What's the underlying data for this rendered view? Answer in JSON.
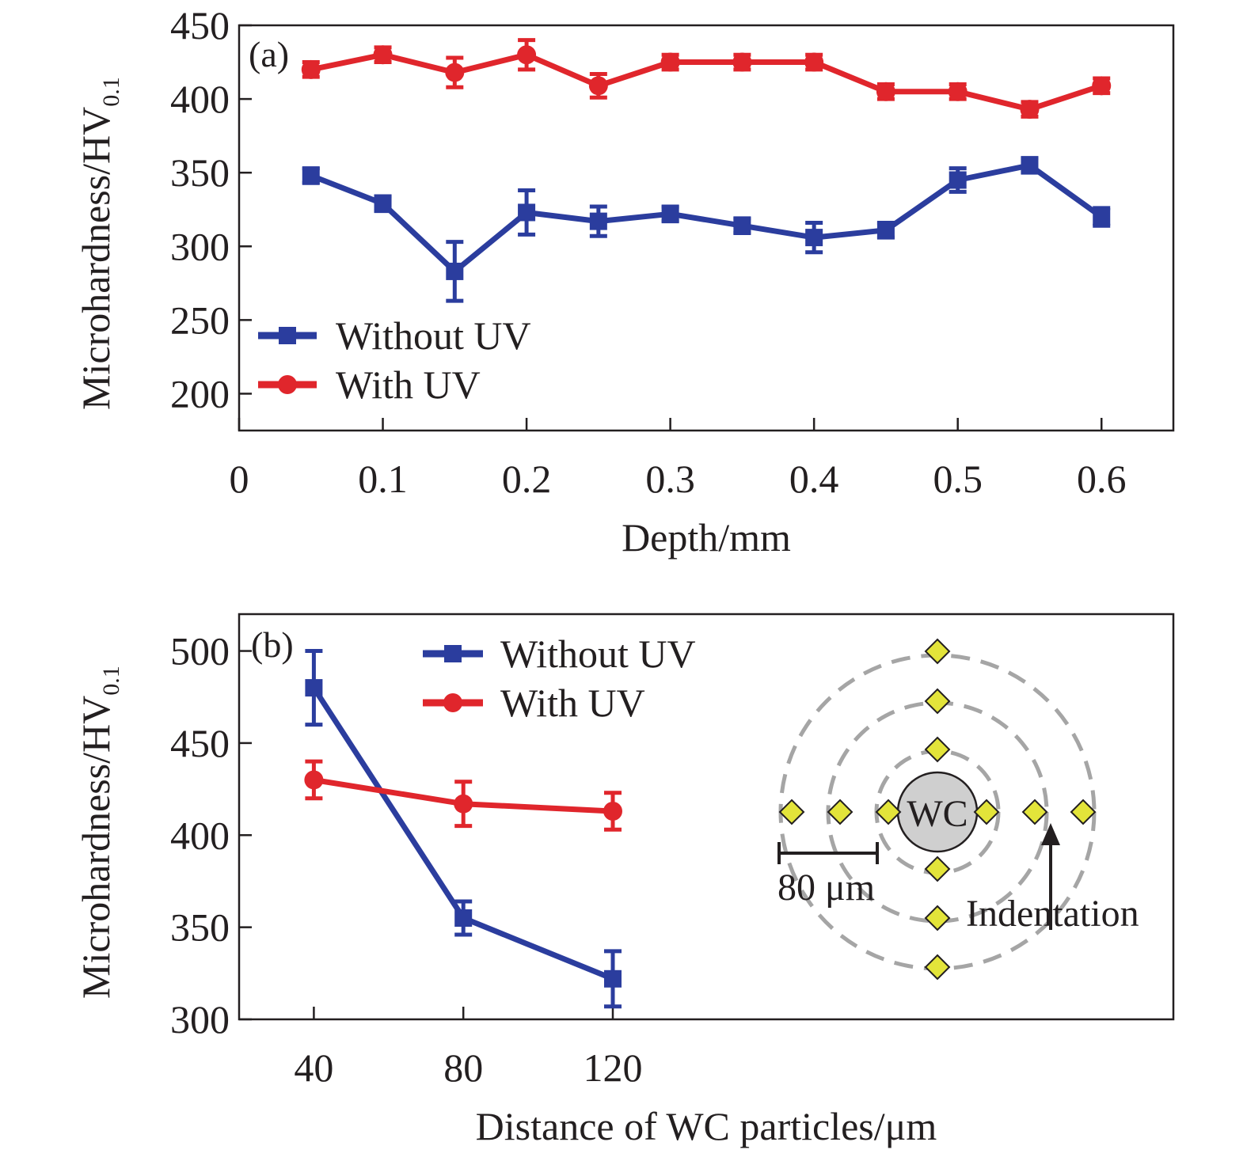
{
  "chart_data": [
    {
      "panel": "(a)",
      "type": "line",
      "xlabel": "Depth/mm",
      "ylabel": "Microhardness/HV",
      "ylabel_sub": "0.1",
      "xlim": [
        0,
        0.65
      ],
      "ylim": [
        175,
        450
      ],
      "xticks": [
        0,
        0.1,
        0.2,
        0.3,
        0.4,
        0.5,
        0.6
      ],
      "xtick_labels": [
        "0",
        "0.1",
        "0.2",
        "0.3",
        "0.4",
        "0.5",
        "0.6"
      ],
      "yticks": [
        200,
        250,
        300,
        350,
        400,
        450
      ],
      "ytick_labels": [
        "200",
        "250",
        "300",
        "350",
        "400",
        "450"
      ],
      "legend_position": "bottom-left",
      "series": [
        {
          "name": "Without UV",
          "color": "#2b3d9e",
          "marker": "square",
          "x": [
            0.05,
            0.1,
            0.15,
            0.2,
            0.25,
            0.3,
            0.35,
            0.4,
            0.45,
            0.5,
            0.55,
            0.6
          ],
          "y": [
            348,
            329,
            283,
            323,
            317,
            322,
            314,
            306,
            311,
            345,
            355,
            320
          ],
          "err": [
            5,
            5,
            20,
            15,
            10,
            5,
            5,
            10,
            5,
            8,
            5,
            6
          ]
        },
        {
          "name": "With UV",
          "color": "#e0262c",
          "marker": "circle",
          "x": [
            0.05,
            0.1,
            0.15,
            0.2,
            0.25,
            0.3,
            0.35,
            0.4,
            0.45,
            0.5,
            0.55,
            0.6
          ],
          "y": [
            420,
            430,
            418,
            430,
            409,
            425,
            425,
            425,
            405,
            405,
            393,
            409
          ],
          "err": [
            5,
            5,
            10,
            10,
            8,
            5,
            5,
            5,
            5,
            5,
            5,
            5
          ]
        }
      ]
    },
    {
      "panel": "(b)",
      "type": "line",
      "xlabel": "Distance of WC particles/μm",
      "ylabel": "Microhardness/HV",
      "ylabel_sub": "0.1",
      "xlim": [
        20,
        270
      ],
      "ylim": [
        300,
        520
      ],
      "xticks": [
        40,
        80,
        120
      ],
      "xtick_labels": [
        "40",
        "80",
        "120"
      ],
      "yticks": [
        300,
        350,
        400,
        450,
        500
      ],
      "ytick_labels": [
        "300",
        "350",
        "400",
        "450",
        "500"
      ],
      "legend_position": "top-center",
      "series": [
        {
          "name": "Without UV",
          "color": "#2b3d9e",
          "marker": "square",
          "x": [
            40,
            80,
            120
          ],
          "y": [
            480,
            355,
            322
          ],
          "err": [
            20,
            9,
            15
          ]
        },
        {
          "name": "With UV",
          "color": "#e0262c",
          "marker": "circle",
          "x": [
            40,
            80,
            120
          ],
          "y": [
            430,
            417,
            413
          ],
          "err": [
            10,
            12,
            10
          ]
        }
      ],
      "inset": {
        "center_label": "WC",
        "scale_label": "80 μm",
        "arrow_label": "Indentation",
        "ring_color": "#a5a5a5",
        "particle_color": "#cfcfcf",
        "marker_color": "#e3e43a"
      }
    }
  ]
}
